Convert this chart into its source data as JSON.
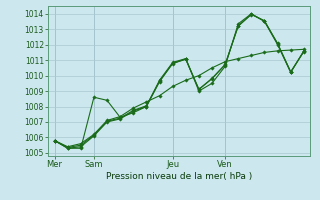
{
  "xlabel": "Pression niveau de la mer( hPa )",
  "ylim": [
    1004.8,
    1014.5
  ],
  "yticks": [
    1005,
    1006,
    1007,
    1008,
    1009,
    1010,
    1011,
    1012,
    1013,
    1014
  ],
  "bg_color": "#cce8ee",
  "grid_color": "#aac8d0",
  "line_color": "#1a6b1a",
  "xtick_labels": [
    "Mer",
    "Sam",
    "Jeu",
    "Ven"
  ],
  "xtick_positions": [
    0,
    3,
    9,
    13
  ],
  "total_points": 20,
  "series": [
    [
      1005.8,
      1005.3,
      1005.3,
      1008.6,
      1008.4,
      1007.3,
      1007.6,
      1008.0,
      1009.7,
      1010.85,
      1011.1,
      1009.0,
      1009.5,
      1010.6,
      1013.35,
      1014.0,
      1013.5,
      1012.0,
      1010.2,
      1011.6
    ],
    [
      1005.8,
      1005.3,
      1005.4,
      1006.1,
      1007.0,
      1007.2,
      1007.7,
      1008.0,
      1009.6,
      1010.8,
      1011.05,
      1009.1,
      1009.8,
      1010.7,
      1013.2,
      1013.95,
      1013.55,
      1012.05,
      1010.25,
      1011.55
    ],
    [
      1005.8,
      1005.35,
      1005.5,
      1006.15,
      1007.05,
      1007.25,
      1007.75,
      1008.05,
      1009.65,
      1010.77,
      1011.08,
      1009.12,
      1009.82,
      1010.72,
      1013.22,
      1013.97,
      1013.52,
      1012.08,
      1010.22,
      1011.58
    ],
    [
      1005.8,
      1005.4,
      1005.6,
      1006.2,
      1007.1,
      1007.35,
      1007.9,
      1008.3,
      1008.7,
      1009.3,
      1009.7,
      1010.0,
      1010.5,
      1010.9,
      1011.1,
      1011.3,
      1011.5,
      1011.6,
      1011.65,
      1011.7
    ]
  ]
}
